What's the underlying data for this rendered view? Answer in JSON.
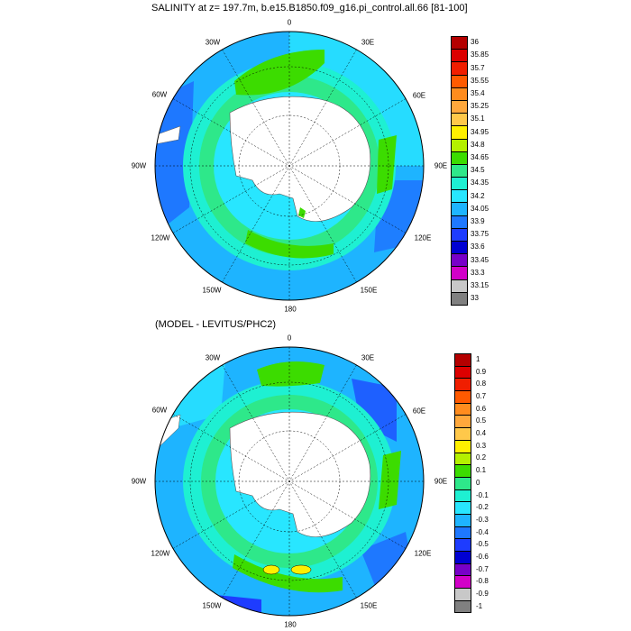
{
  "maps": [
    {
      "title": "SALINITY at z= 197.7m, b.e15.B1850.f09_g16.pi_control.all.66 [81-100]",
      "longitude_labels": [
        "0",
        "30E",
        "60E",
        "90E",
        "120E",
        "150E",
        "180",
        "150W",
        "120W",
        "90W",
        "60W",
        "30W"
      ],
      "colorbar": {
        "labels": [
          "36",
          "35.85",
          "35.7",
          "35.55",
          "35.4",
          "35.25",
          "35.1",
          "34.95",
          "34.8",
          "34.65",
          "34.5",
          "34.35",
          "34.2",
          "34.05",
          "33.9",
          "33.75",
          "33.6",
          "33.45",
          "33.3",
          "33.15",
          "33"
        ],
        "colors": [
          "#b40000",
          "#dc0000",
          "#f01e00",
          "#ff5a00",
          "#ff8c1e",
          "#ffa83c",
          "#ffc84a",
          "#fff000",
          "#b4f000",
          "#3cdc00",
          "#2ee88a",
          "#1ef0d2",
          "#28e6ff",
          "#1eb4ff",
          "#1e78ff",
          "#1e3cff",
          "#0000d2",
          "#7800c8",
          "#d200c8",
          "#c8c8c8",
          "#808080"
        ]
      }
    },
    {
      "title": "(MODEL - LEVITUS/PHC2)",
      "longitude_labels": [
        "0",
        "30E",
        "60E",
        "90E",
        "120E",
        "150E",
        "180",
        "150W",
        "120W",
        "90W",
        "60W",
        "30W"
      ],
      "colorbar": {
        "labels": [
          "1",
          "0.9",
          "0.8",
          "0.7",
          "0.6",
          "0.5",
          "0.4",
          "0.3",
          "0.2",
          "0.1",
          "0",
          "-0.1",
          "-0.2",
          "-0.3",
          "-0.4",
          "-0.5",
          "-0.6",
          "-0.7",
          "-0.8",
          "-0.9",
          "-1"
        ],
        "colors": [
          "#b40000",
          "#dc0000",
          "#f01e00",
          "#ff5a00",
          "#ff8c1e",
          "#ffa83c",
          "#ffc84a",
          "#fff000",
          "#b4f000",
          "#3cdc00",
          "#2ee88a",
          "#1ef0d2",
          "#28e6ff",
          "#1eb4ff",
          "#1e78ff",
          "#1e3cff",
          "#0000d2",
          "#7800c8",
          "#d200c8",
          "#c8c8c8",
          "#808080"
        ]
      }
    }
  ]
}
